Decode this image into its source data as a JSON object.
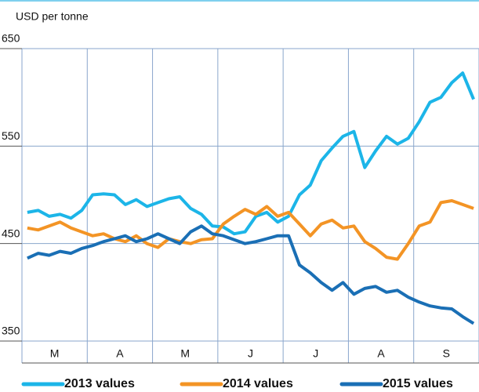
{
  "chart_data": {
    "type": "line",
    "ylabel": "USD per tonne",
    "categories": [
      null,
      null,
      null,
      "M",
      null,
      null,
      null,
      null,
      null,
      "A",
      null,
      null,
      null,
      null,
      null,
      "M",
      null,
      null,
      null,
      null,
      null,
      "J",
      null,
      null,
      null,
      null,
      null,
      "J",
      null,
      null,
      null,
      null,
      null,
      "A",
      null,
      null,
      null,
      null,
      null,
      "S",
      null,
      null
    ],
    "series": [
      {
        "name": "2013 values",
        "color": "#1cb5e8",
        "values": [
          482,
          484,
          478,
          480,
          476,
          484,
          500,
          501,
          500,
          490,
          495,
          488,
          492,
          496,
          498,
          486,
          480,
          468,
          467,
          460,
          462,
          478,
          482,
          472,
          478,
          500,
          510,
          535,
          548,
          560,
          565,
          528,
          545,
          560,
          552,
          558,
          575,
          595,
          600,
          615,
          625,
          598
        ]
      },
      {
        "name": "2014 values",
        "color": "#f39425",
        "values": [
          466,
          464,
          468,
          472,
          466,
          462,
          458,
          460,
          455,
          452,
          458,
          450,
          446,
          455,
          452,
          450,
          454,
          455,
          470,
          478,
          485,
          480,
          488,
          478,
          482,
          470,
          458,
          470,
          474,
          466,
          468,
          452,
          445,
          436,
          434,
          450,
          468,
          472,
          492,
          494,
          490,
          486
        ]
      },
      {
        "name": "2015 values",
        "color": "#1a6fb5",
        "values": [
          435,
          440,
          438,
          442,
          440,
          445,
          448,
          452,
          455,
          458,
          452,
          455,
          460,
          455,
          450,
          462,
          468,
          460,
          458,
          454,
          450,
          452,
          455,
          458,
          458,
          428,
          420,
          410,
          402,
          410,
          398,
          404,
          406,
          400,
          402,
          395,
          390,
          386,
          384,
          383,
          375,
          368
        ]
      }
    ],
    "ylim": [
      350,
      650
    ],
    "yticks": [
      350,
      450,
      550,
      650
    ],
    "grid": true
  }
}
